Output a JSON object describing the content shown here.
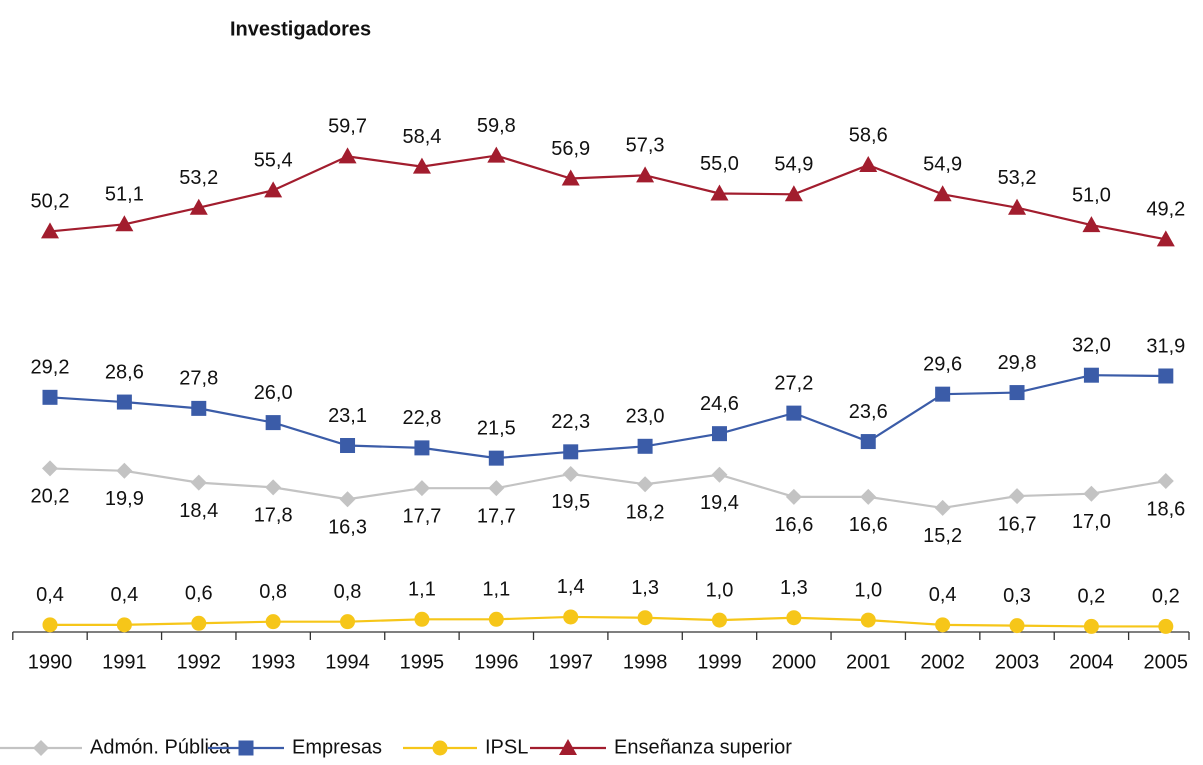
{
  "chart_data": {
    "type": "line",
    "title": "Investigadores",
    "categories": [
      "1990",
      "1991",
      "1992",
      "1993",
      "1994",
      "1995",
      "1996",
      "1997",
      "1998",
      "1999",
      "2000",
      "2001",
      "2002",
      "2003",
      "2004",
      "2005"
    ],
    "ylim": [
      0,
      70
    ],
    "series": [
      {
        "name": "Admón. Pública",
        "color": "#c3c3c3",
        "marker": "diamond",
        "values": [
          20.2,
          19.9,
          18.4,
          17.8,
          16.3,
          17.7,
          17.7,
          19.5,
          18.2,
          19.4,
          16.6,
          16.6,
          15.2,
          16.7,
          17.0,
          18.6
        ],
        "value_labels": [
          "20,2",
          "19,9",
          "18,4",
          "17,8",
          "16,3",
          "17,7",
          "17,7",
          "19,5",
          "18,2",
          "19,4",
          "16,6",
          "16,6",
          "15,2",
          "16,7",
          "17,0",
          "18,6"
        ]
      },
      {
        "name": "Empresas",
        "color": "#3b5ca8",
        "marker": "square",
        "values": [
          29.2,
          28.6,
          27.8,
          26.0,
          23.1,
          22.8,
          21.5,
          22.3,
          23.0,
          24.6,
          27.2,
          23.6,
          29.6,
          29.8,
          32.0,
          31.9
        ],
        "value_labels": [
          "29,2",
          "28,6",
          "27,8",
          "26,0",
          "23,1",
          "22,8",
          "21,5",
          "22,3",
          "23,0",
          "24,6",
          "27,2",
          "23,6",
          "29,6",
          "29,8",
          "32,0",
          "31,9"
        ]
      },
      {
        "name": "IPSL",
        "color": "#f6c619",
        "marker": "circle",
        "values": [
          0.4,
          0.4,
          0.6,
          0.8,
          0.8,
          1.1,
          1.1,
          1.4,
          1.3,
          1.0,
          1.3,
          1.0,
          0.4,
          0.3,
          0.2,
          0.2
        ],
        "value_labels": [
          "0,4",
          "0,4",
          "0,6",
          "0,8",
          "0,8",
          "1,1",
          "1,1",
          "1,4",
          "1,3",
          "1,0",
          "1,3",
          "1,0",
          "0,4",
          "0,3",
          "0,2",
          "0,2"
        ]
      },
      {
        "name": "Enseñanza superior",
        "color": "#a21d2e",
        "marker": "triangle",
        "values": [
          50.2,
          51.1,
          53.2,
          55.4,
          59.7,
          58.4,
          59.8,
          56.9,
          57.3,
          55.0,
          54.9,
          58.6,
          54.9,
          53.2,
          51.0,
          49.2
        ],
        "value_labels": [
          "50,2",
          "51,1",
          "53,2",
          "55,4",
          "59,7",
          "58,4",
          "59,8",
          "56,9",
          "57,3",
          "55,0",
          "54,9",
          "58,6",
          "54,9",
          "53,2",
          "51,0",
          "49,2"
        ]
      }
    ]
  }
}
